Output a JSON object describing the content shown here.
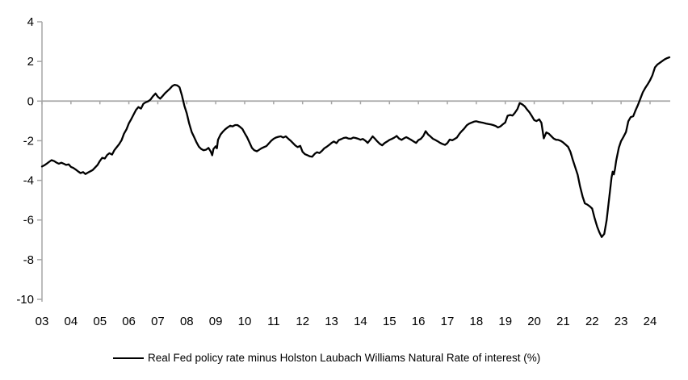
{
  "legend": {
    "label": "Real Fed policy rate minus Holston Laubach Williams Natural Rate of interest (%)"
  },
  "colors": {
    "line": "#000000",
    "axis": "#a6a6a6",
    "zero_line": "#a6a6a6",
    "text": "#000000",
    "background": "#ffffff"
  },
  "chart_data": {
    "type": "line",
    "title": "",
    "xlabel": "",
    "ylabel": "",
    "grid": false,
    "legend_position": "bottom",
    "ylim": [
      -10,
      4
    ],
    "xlim": [
      2003,
      2024.75
    ],
    "y_ticks": [
      4,
      2,
      0,
      -2,
      -4,
      -6,
      -8,
      -10
    ],
    "y_tick_labels": [
      "4",
      "2",
      "0",
      "-2",
      "-4",
      "-6",
      "-8",
      "-10"
    ],
    "x_tick_years": [
      2003,
      2004,
      2005,
      2006,
      2007,
      2008,
      2009,
      2010,
      2011,
      2012,
      2013,
      2014,
      2015,
      2016,
      2017,
      2018,
      2019,
      2020,
      2021,
      2022,
      2023,
      2024
    ],
    "x_tick_labels": [
      "03",
      "04",
      "05",
      "06",
      "07",
      "08",
      "09",
      "10",
      "11",
      "12",
      "13",
      "14",
      "15",
      "16",
      "17",
      "18",
      "19",
      "20",
      "21",
      "22",
      "23",
      "24"
    ],
    "zero_line": true,
    "series": [
      {
        "name": "Real Fed policy rate minus Holston Laubach Williams Natural Rate of interest (%)",
        "color": "#000000",
        "points": [
          [
            2003.0,
            -3.3
          ],
          [
            2003.08,
            -3.24
          ],
          [
            2003.17,
            -3.15
          ],
          [
            2003.25,
            -3.06
          ],
          [
            2003.33,
            -2.98
          ],
          [
            2003.42,
            -3.03
          ],
          [
            2003.5,
            -3.1
          ],
          [
            2003.58,
            -3.16
          ],
          [
            2003.67,
            -3.11
          ],
          [
            2003.75,
            -3.16
          ],
          [
            2003.83,
            -3.22
          ],
          [
            2003.92,
            -3.19
          ],
          [
            2004.0,
            -3.32
          ],
          [
            2004.08,
            -3.37
          ],
          [
            2004.17,
            -3.46
          ],
          [
            2004.25,
            -3.55
          ],
          [
            2004.33,
            -3.63
          ],
          [
            2004.42,
            -3.58
          ],
          [
            2004.5,
            -3.68
          ],
          [
            2004.58,
            -3.61
          ],
          [
            2004.67,
            -3.54
          ],
          [
            2004.75,
            -3.48
          ],
          [
            2004.83,
            -3.36
          ],
          [
            2004.92,
            -3.22
          ],
          [
            2005.0,
            -3.02
          ],
          [
            2005.08,
            -2.86
          ],
          [
            2005.17,
            -2.9
          ],
          [
            2005.25,
            -2.72
          ],
          [
            2005.33,
            -2.63
          ],
          [
            2005.42,
            -2.7
          ],
          [
            2005.5,
            -2.48
          ],
          [
            2005.58,
            -2.33
          ],
          [
            2005.67,
            -2.16
          ],
          [
            2005.75,
            -1.97
          ],
          [
            2005.83,
            -1.65
          ],
          [
            2005.92,
            -1.42
          ],
          [
            2006.0,
            -1.12
          ],
          [
            2006.08,
            -0.92
          ],
          [
            2006.17,
            -0.66
          ],
          [
            2006.25,
            -0.44
          ],
          [
            2006.33,
            -0.3
          ],
          [
            2006.42,
            -0.38
          ],
          [
            2006.5,
            -0.14
          ],
          [
            2006.58,
            -0.06
          ],
          [
            2006.67,
            -0.01
          ],
          [
            2006.75,
            0.08
          ],
          [
            2006.83,
            0.24
          ],
          [
            2006.92,
            0.38
          ],
          [
            2007.0,
            0.22
          ],
          [
            2007.08,
            0.12
          ],
          [
            2007.17,
            0.26
          ],
          [
            2007.25,
            0.4
          ],
          [
            2007.33,
            0.51
          ],
          [
            2007.42,
            0.63
          ],
          [
            2007.5,
            0.76
          ],
          [
            2007.58,
            0.82
          ],
          [
            2007.67,
            0.79
          ],
          [
            2007.75,
            0.7
          ],
          [
            2007.83,
            0.3
          ],
          [
            2007.92,
            -0.25
          ],
          [
            2008.0,
            -0.62
          ],
          [
            2008.08,
            -1.12
          ],
          [
            2008.17,
            -1.56
          ],
          [
            2008.25,
            -1.8
          ],
          [
            2008.33,
            -2.06
          ],
          [
            2008.42,
            -2.3
          ],
          [
            2008.5,
            -2.42
          ],
          [
            2008.58,
            -2.48
          ],
          [
            2008.67,
            -2.45
          ],
          [
            2008.75,
            -2.36
          ],
          [
            2008.83,
            -2.55
          ],
          [
            2008.88,
            -2.73
          ],
          [
            2008.92,
            -2.42
          ],
          [
            2009.0,
            -2.28
          ],
          [
            2009.04,
            -2.38
          ],
          [
            2009.08,
            -1.95
          ],
          [
            2009.17,
            -1.68
          ],
          [
            2009.25,
            -1.54
          ],
          [
            2009.33,
            -1.42
          ],
          [
            2009.42,
            -1.32
          ],
          [
            2009.5,
            -1.24
          ],
          [
            2009.58,
            -1.28
          ],
          [
            2009.67,
            -1.21
          ],
          [
            2009.75,
            -1.21
          ],
          [
            2009.83,
            -1.29
          ],
          [
            2009.92,
            -1.4
          ],
          [
            2010.0,
            -1.62
          ],
          [
            2010.08,
            -1.82
          ],
          [
            2010.17,
            -2.1
          ],
          [
            2010.25,
            -2.36
          ],
          [
            2010.33,
            -2.48
          ],
          [
            2010.42,
            -2.53
          ],
          [
            2010.5,
            -2.46
          ],
          [
            2010.58,
            -2.38
          ],
          [
            2010.67,
            -2.32
          ],
          [
            2010.75,
            -2.27
          ],
          [
            2010.83,
            -2.14
          ],
          [
            2010.92,
            -2.0
          ],
          [
            2011.0,
            -1.9
          ],
          [
            2011.08,
            -1.84
          ],
          [
            2011.17,
            -1.8
          ],
          [
            2011.25,
            -1.78
          ],
          [
            2011.33,
            -1.84
          ],
          [
            2011.42,
            -1.78
          ],
          [
            2011.5,
            -1.89
          ],
          [
            2011.58,
            -1.99
          ],
          [
            2011.67,
            -2.12
          ],
          [
            2011.75,
            -2.24
          ],
          [
            2011.83,
            -2.32
          ],
          [
            2011.92,
            -2.26
          ],
          [
            2012.0,
            -2.56
          ],
          [
            2012.08,
            -2.68
          ],
          [
            2012.17,
            -2.73
          ],
          [
            2012.25,
            -2.79
          ],
          [
            2012.33,
            -2.81
          ],
          [
            2012.42,
            -2.66
          ],
          [
            2012.5,
            -2.58
          ],
          [
            2012.58,
            -2.62
          ],
          [
            2012.67,
            -2.51
          ],
          [
            2012.75,
            -2.38
          ],
          [
            2012.83,
            -2.31
          ],
          [
            2012.92,
            -2.21
          ],
          [
            2013.0,
            -2.11
          ],
          [
            2013.08,
            -2.04
          ],
          [
            2013.17,
            -2.12
          ],
          [
            2013.25,
            -1.97
          ],
          [
            2013.33,
            -1.92
          ],
          [
            2013.42,
            -1.86
          ],
          [
            2013.5,
            -1.84
          ],
          [
            2013.58,
            -1.89
          ],
          [
            2013.67,
            -1.9
          ],
          [
            2013.75,
            -1.84
          ],
          [
            2013.83,
            -1.86
          ],
          [
            2013.92,
            -1.9
          ],
          [
            2014.0,
            -1.95
          ],
          [
            2014.08,
            -1.91
          ],
          [
            2014.17,
            -2.0
          ],
          [
            2014.25,
            -2.11
          ],
          [
            2014.33,
            -1.96
          ],
          [
            2014.42,
            -1.78
          ],
          [
            2014.5,
            -1.9
          ],
          [
            2014.58,
            -2.03
          ],
          [
            2014.67,
            -2.16
          ],
          [
            2014.75,
            -2.23
          ],
          [
            2014.83,
            -2.12
          ],
          [
            2014.92,
            -2.04
          ],
          [
            2015.0,
            -1.96
          ],
          [
            2015.08,
            -1.91
          ],
          [
            2015.17,
            -1.84
          ],
          [
            2015.25,
            -1.76
          ],
          [
            2015.33,
            -1.89
          ],
          [
            2015.42,
            -1.96
          ],
          [
            2015.5,
            -1.88
          ],
          [
            2015.58,
            -1.82
          ],
          [
            2015.67,
            -1.89
          ],
          [
            2015.75,
            -1.96
          ],
          [
            2015.83,
            -2.03
          ],
          [
            2015.92,
            -2.11
          ],
          [
            2016.0,
            -1.97
          ],
          [
            2016.08,
            -1.91
          ],
          [
            2016.17,
            -1.76
          ],
          [
            2016.25,
            -1.52
          ],
          [
            2016.33,
            -1.68
          ],
          [
            2016.42,
            -1.79
          ],
          [
            2016.5,
            -1.9
          ],
          [
            2016.58,
            -1.96
          ],
          [
            2016.67,
            -2.03
          ],
          [
            2016.75,
            -2.11
          ],
          [
            2016.83,
            -2.16
          ],
          [
            2016.92,
            -2.21
          ],
          [
            2017.0,
            -2.12
          ],
          [
            2017.08,
            -1.94
          ],
          [
            2017.17,
            -1.98
          ],
          [
            2017.25,
            -1.91
          ],
          [
            2017.33,
            -1.84
          ],
          [
            2017.42,
            -1.64
          ],
          [
            2017.5,
            -1.51
          ],
          [
            2017.58,
            -1.39
          ],
          [
            2017.67,
            -1.22
          ],
          [
            2017.75,
            -1.14
          ],
          [
            2017.83,
            -1.09
          ],
          [
            2017.92,
            -1.04
          ],
          [
            2018.0,
            -1.02
          ],
          [
            2018.08,
            -1.05
          ],
          [
            2018.17,
            -1.08
          ],
          [
            2018.25,
            -1.1
          ],
          [
            2018.33,
            -1.13
          ],
          [
            2018.42,
            -1.16
          ],
          [
            2018.5,
            -1.18
          ],
          [
            2018.58,
            -1.21
          ],
          [
            2018.67,
            -1.26
          ],
          [
            2018.75,
            -1.33
          ],
          [
            2018.83,
            -1.28
          ],
          [
            2018.92,
            -1.17
          ],
          [
            2019.0,
            -1.08
          ],
          [
            2019.08,
            -0.74
          ],
          [
            2019.17,
            -0.7
          ],
          [
            2019.25,
            -0.73
          ],
          [
            2019.33,
            -0.6
          ],
          [
            2019.42,
            -0.4
          ],
          [
            2019.5,
            -0.1
          ],
          [
            2019.58,
            -0.16
          ],
          [
            2019.67,
            -0.26
          ],
          [
            2019.75,
            -0.42
          ],
          [
            2019.83,
            -0.56
          ],
          [
            2019.92,
            -0.76
          ],
          [
            2020.0,
            -0.96
          ],
          [
            2020.08,
            -1.01
          ],
          [
            2020.17,
            -0.92
          ],
          [
            2020.25,
            -1.1
          ],
          [
            2020.33,
            -1.88
          ],
          [
            2020.42,
            -1.58
          ],
          [
            2020.5,
            -1.64
          ],
          [
            2020.58,
            -1.76
          ],
          [
            2020.67,
            -1.89
          ],
          [
            2020.75,
            -1.95
          ],
          [
            2020.83,
            -1.96
          ],
          [
            2020.92,
            -2.01
          ],
          [
            2021.0,
            -2.09
          ],
          [
            2021.08,
            -2.19
          ],
          [
            2021.17,
            -2.31
          ],
          [
            2021.25,
            -2.56
          ],
          [
            2021.33,
            -2.96
          ],
          [
            2021.42,
            -3.36
          ],
          [
            2021.5,
            -3.72
          ],
          [
            2021.58,
            -4.28
          ],
          [
            2021.67,
            -4.82
          ],
          [
            2021.75,
            -5.16
          ],
          [
            2021.83,
            -5.22
          ],
          [
            2021.92,
            -5.31
          ],
          [
            2022.0,
            -5.42
          ],
          [
            2022.08,
            -5.88
          ],
          [
            2022.17,
            -6.32
          ],
          [
            2022.25,
            -6.62
          ],
          [
            2022.33,
            -6.86
          ],
          [
            2022.42,
            -6.7
          ],
          [
            2022.5,
            -6.02
          ],
          [
            2022.58,
            -5.0
          ],
          [
            2022.67,
            -3.86
          ],
          [
            2022.71,
            -3.56
          ],
          [
            2022.75,
            -3.7
          ],
          [
            2022.79,
            -3.42
          ],
          [
            2022.83,
            -3.02
          ],
          [
            2022.92,
            -2.36
          ],
          [
            2023.0,
            -2.02
          ],
          [
            2023.08,
            -1.81
          ],
          [
            2023.17,
            -1.56
          ],
          [
            2023.25,
            -1.02
          ],
          [
            2023.33,
            -0.81
          ],
          [
            2023.42,
            -0.76
          ],
          [
            2023.5,
            -0.46
          ],
          [
            2023.58,
            -0.21
          ],
          [
            2023.67,
            0.14
          ],
          [
            2023.75,
            0.44
          ],
          [
            2023.83,
            0.65
          ],
          [
            2023.92,
            0.85
          ],
          [
            2024.0,
            1.05
          ],
          [
            2024.08,
            1.3
          ],
          [
            2024.17,
            1.7
          ],
          [
            2024.25,
            1.84
          ],
          [
            2024.33,
            1.92
          ],
          [
            2024.42,
            2.02
          ],
          [
            2024.5,
            2.1
          ],
          [
            2024.58,
            2.16
          ],
          [
            2024.67,
            2.21
          ]
        ]
      }
    ]
  }
}
